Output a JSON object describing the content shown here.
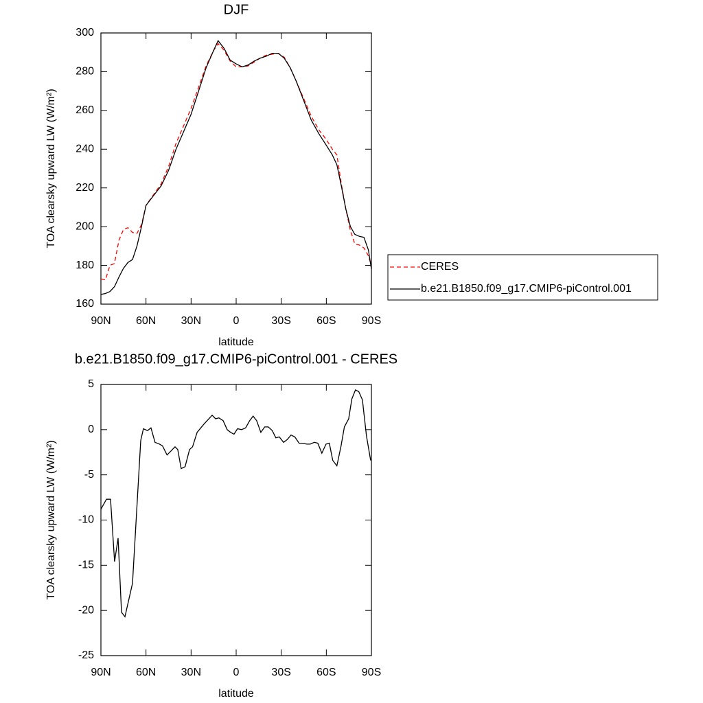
{
  "chart_data": [
    {
      "type": "line",
      "title": "DJF",
      "x_label": "latitude",
      "y_label": "TOA clearsky upward LW (W/m²)",
      "x": [
        90,
        87,
        84,
        81,
        78,
        75,
        72,
        69,
        66,
        63,
        60,
        55,
        50,
        45,
        40,
        35,
        30,
        25,
        20,
        15,
        12,
        8,
        4,
        0,
        -4,
        -8,
        -12,
        -16,
        -20,
        -24,
        -28,
        -32,
        -36,
        -40,
        -45,
        -50,
        -55,
        -60,
        -64,
        -67,
        -70,
        -73,
        -76,
        -79,
        -82,
        -85,
        -88,
        -90
      ],
      "series": [
        {
          "name": "CERES",
          "color": "#ff0000",
          "line_style": "dashed",
          "values": [
            173,
            172.5,
            180,
            181,
            193,
            198.5,
            199.5,
            197,
            196.5,
            201,
            211,
            216.5,
            222,
            231,
            243,
            252,
            261,
            272,
            283,
            291,
            294.5,
            291,
            285.5,
            282.5,
            282.5,
            283,
            285,
            287,
            288.5,
            289,
            289.5,
            287.5,
            282,
            275,
            266,
            257,
            250,
            245,
            240,
            237,
            222,
            209,
            198,
            191,
            190.5,
            189,
            185,
            180
          ]
        },
        {
          "name": "b.e21.B1850.f09_g17.CMIP6-piControl.001",
          "color": "#000000",
          "line_style": "solid",
          "values": [
            165,
            165.5,
            166.5,
            169,
            174,
            178.5,
            181.5,
            183,
            190,
            200,
            211,
            216,
            221,
            229,
            240,
            249,
            258,
            270,
            282,
            291,
            296,
            292,
            286,
            284,
            282.5,
            283.5,
            285.5,
            287,
            288,
            289.5,
            289.5,
            287,
            282,
            275,
            265,
            255,
            248,
            242,
            237,
            232,
            221,
            209,
            200,
            196,
            195,
            194.5,
            188,
            178
          ]
        }
      ],
      "xlim": [
        90,
        -90
      ],
      "xticks": [
        {
          "value": 90,
          "label": "90N"
        },
        {
          "value": 60,
          "label": "60N"
        },
        {
          "value": 30,
          "label": "30N"
        },
        0,
        {
          "value": -30,
          "label": "30S"
        },
        {
          "value": -60,
          "label": "60S"
        },
        {
          "value": -90,
          "label": "90S"
        }
      ],
      "ylim": [
        160,
        300
      ],
      "yticks": [
        160,
        180,
        200,
        220,
        240,
        260,
        280,
        300
      ],
      "legend_position": "right"
    },
    {
      "type": "line",
      "title": "b.e21.B1850.f09_g17.CMIP6-piControl.001 - CERES",
      "x_label": "latitude",
      "y_label": "TOA clearsky upward LW (W/m²)",
      "x": [
        90,
        86.3,
        83.6,
        80.9,
        78.6,
        76.3,
        74,
        69,
        63.5,
        61.7,
        59,
        56.7,
        54,
        51,
        49,
        46,
        43,
        40.7,
        38.9,
        36.6,
        34,
        31,
        29,
        26,
        21.5,
        16,
        13.7,
        11.5,
        8.7,
        6,
        3.7,
        1.4,
        -0.9,
        -3.6,
        -6.3,
        -9,
        -11.3,
        -13.6,
        -16.4,
        -19,
        -21.4,
        -24,
        -26.4,
        -28.7,
        -31.5,
        -34,
        -36.5,
        -39,
        -41.9,
        -44,
        -47,
        -49.3,
        -52,
        -54.3,
        -57,
        -59.8,
        -62,
        -64.3,
        -67,
        -69.8,
        -72,
        -74.9,
        -77,
        -79.4,
        -81.6,
        -84,
        -86.7,
        -89.5
      ],
      "color": "#000000",
      "values": [
        -8.8,
        -7.7,
        -7.7,
        -14.6,
        -12,
        -20.2,
        -20.7,
        -17,
        -1.2,
        0.1,
        -0.1,
        0.2,
        -1.4,
        -1.6,
        -1.8,
        -2.8,
        -2.3,
        -1.9,
        -2.2,
        -4.3,
        -4.1,
        -2.2,
        -1.9,
        -0.3,
        0.6,
        1.6,
        1.2,
        1.3,
        1.0,
        0.0,
        -0.3,
        -0.5,
        0.1,
        0.0,
        0.2,
        1.0,
        1.5,
        1.0,
        -0.3,
        0.3,
        0.3,
        -0.1,
        -0.9,
        -0.8,
        -1.4,
        -1.1,
        -0.6,
        -0.8,
        -1.5,
        -1.5,
        -1.6,
        -1.6,
        -1.4,
        -1.5,
        -2.6,
        -1.6,
        -1.5,
        -3.4,
        -4.0,
        -1.8,
        0.3,
        1.2,
        3.4,
        4.4,
        4.2,
        3.3,
        -0.7,
        -3.4
      ],
      "xlim": [
        90,
        -90
      ],
      "xticks": [
        {
          "value": 90,
          "label": "90N"
        },
        {
          "value": 60,
          "label": "60N"
        },
        {
          "value": 30,
          "label": "30N"
        },
        0,
        {
          "value": -30,
          "label": "30S"
        },
        {
          "value": -60,
          "label": "60S"
        },
        {
          "value": -90,
          "label": "90S"
        }
      ],
      "ylim": [
        -25,
        5
      ],
      "yticks": [
        -25,
        -20,
        -15,
        -10,
        -5,
        0,
        5
      ]
    }
  ]
}
